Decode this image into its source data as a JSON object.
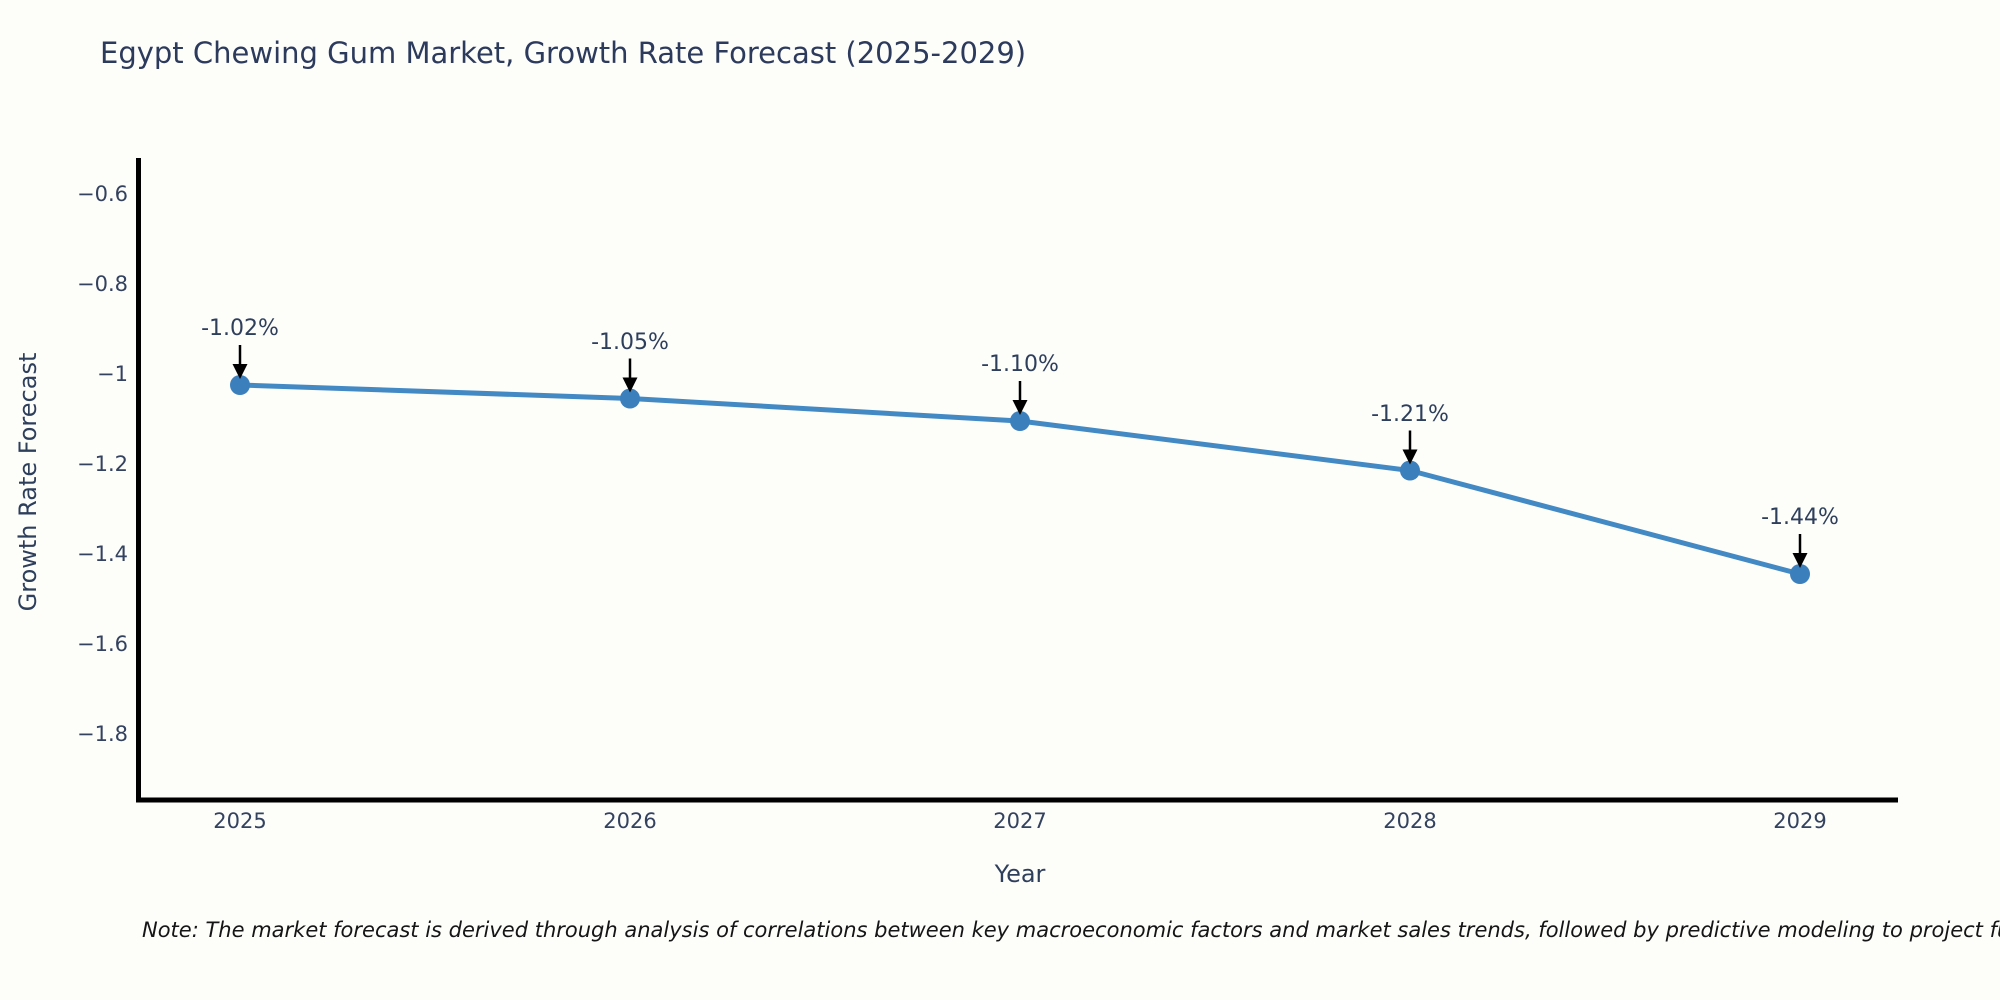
{
  "note": {
    "text": "Note: The market forecast is derived through analysis of correlations between key macroeconomic factors and market sales trends, followed by predictive modeling to project future sales."
  },
  "chart_data": {
    "type": "line",
    "title": "Egypt Chewing Gum Market, Growth Rate Forecast (2025-2029)",
    "xlabel": "Year",
    "ylabel": "Growth Rate Forecast",
    "x": [
      2025,
      2026,
      2027,
      2028,
      2029
    ],
    "series": [
      {
        "name": "Growth Rate Forecast",
        "values": [
          -1.02,
          -1.05,
          -1.1,
          -1.21,
          -1.44
        ]
      }
    ],
    "point_labels": [
      "-1.02%",
      "-1.05%",
      "-1.10%",
      "-1.21%",
      "-1.44%"
    ],
    "xticks": [
      {
        "label": "2025",
        "value": 2025
      },
      {
        "label": "2026",
        "value": 2026
      },
      {
        "label": "2027",
        "value": 2027
      },
      {
        "label": "2028",
        "value": 2028
      },
      {
        "label": "2029",
        "value": 2029
      }
    ],
    "yticks": [
      {
        "label": "−0.6",
        "value": -0.6
      },
      {
        "label": "−0.8",
        "value": -0.8
      },
      {
        "label": "−1",
        "value": -1.0
      },
      {
        "label": "−1.2",
        "value": -1.2
      },
      {
        "label": "−1.4",
        "value": -1.4
      },
      {
        "label": "−1.6",
        "value": -1.6
      },
      {
        "label": "−1.8",
        "value": -1.8
      }
    ],
    "ylim": [
      -1.94,
      -0.52
    ],
    "grid": false,
    "legend_position": "none",
    "colors": {
      "line": "#4389c4",
      "marker": "#3b80bd",
      "annotation_arrow": "#000000",
      "spine": "#000000",
      "text": "#2e3f5c"
    }
  }
}
